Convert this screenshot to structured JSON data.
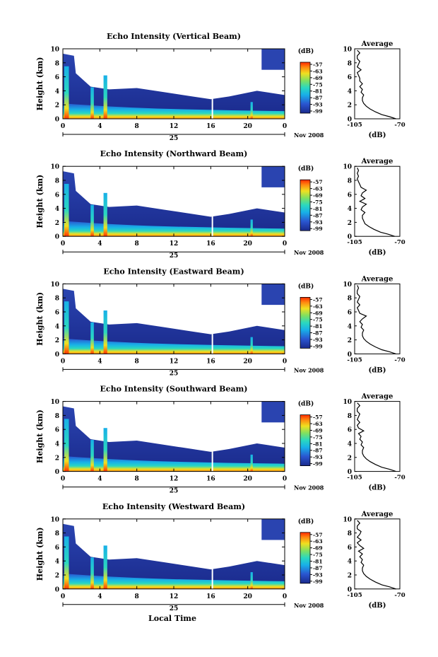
{
  "figure": {
    "xlabel": "Local Time",
    "date_label": "Nov 2008",
    "day_label": "25",
    "colorbar_unit": "(dB)"
  },
  "chart_data": [
    {
      "type": "heatmap",
      "title": "Echo Intensity (Vertical Beam)",
      "ylabel": "Height (km)",
      "x_ticks": [
        "0",
        "4",
        "8",
        "12",
        "16",
        "20",
        "0"
      ],
      "xlim": [
        0,
        24
      ],
      "y_ticks": [
        "0",
        "2",
        "4",
        "6",
        "8",
        "10"
      ],
      "ylim": [
        0,
        10
      ],
      "colorbar_ticks": [
        "-57",
        "-63",
        "-69",
        "-75",
        "-81",
        "-87",
        "-93",
        "-99"
      ],
      "profile": {
        "title": "Average",
        "xlabel": "(dB)",
        "x_ticks": [
          "-105",
          "-70"
        ],
        "xlim": [
          -105,
          -70
        ],
        "y_ticks": [
          "0",
          "2",
          "4",
          "6",
          "8",
          "10"
        ],
        "ylim": [
          0,
          10
        ],
        "heights": [
          0,
          0.3,
          0.6,
          1.0,
          1.4,
          1.8,
          2.2,
          2.6,
          3.0,
          3.4,
          3.8,
          4.2,
          4.6,
          5.0,
          5.4,
          5.8,
          6.2,
          6.6,
          7.0,
          7.4,
          7.8,
          8.2,
          8.6,
          9.0,
          9.4,
          9.8
        ],
        "values": [
          -73,
          -78,
          -84,
          -89,
          -93,
          -96,
          -98,
          -99,
          -99,
          -98,
          -100,
          -99,
          -101,
          -99,
          -101,
          -101,
          -102,
          -103,
          -100,
          -103,
          -102,
          -101,
          -103,
          -103,
          -101,
          -103
        ]
      },
      "colors": {
        "low": "#1a2a8c",
        "high": "#ff3300"
      }
    },
    {
      "type": "heatmap",
      "title": "Echo Intensity (Northward Beam)",
      "ylabel": "Height (km)",
      "x_ticks": [
        "0",
        "4",
        "8",
        "12",
        "16",
        "20",
        "0"
      ],
      "xlim": [
        0,
        24
      ],
      "y_ticks": [
        "0",
        "2",
        "4",
        "6",
        "8",
        "10"
      ],
      "ylim": [
        0,
        10
      ],
      "colorbar_ticks": [
        "-57",
        "-63",
        "-69",
        "-75",
        "-81",
        "-87",
        "-93",
        "-99"
      ],
      "profile": {
        "title": "Average",
        "xlabel": "(dB)",
        "x_ticks": [
          "-105",
          "-70"
        ],
        "xlim": [
          -105,
          -70
        ],
        "heights": [
          0,
          0.3,
          0.6,
          1.0,
          1.4,
          1.8,
          2.2,
          2.6,
          3.0,
          3.4,
          3.8,
          4.2,
          4.6,
          5.0,
          5.4,
          5.8,
          6.2,
          6.6,
          7.0,
          7.4,
          7.8,
          8.2,
          8.6,
          9.0,
          9.4,
          9.8
        ],
        "values": [
          -74,
          -79,
          -85,
          -90,
          -94,
          -97,
          -98,
          -99,
          -99,
          -97,
          -100,
          -99,
          -96,
          -101,
          -97,
          -100,
          -99,
          -96,
          -100,
          -101,
          -102,
          -103,
          -102,
          -103,
          -102,
          -103
        ]
      },
      "colors": {
        "low": "#1a2a8c",
        "high": "#ff3300"
      }
    },
    {
      "type": "heatmap",
      "title": "Echo Intensity (Eastward Beam)",
      "ylabel": "Height (km)",
      "x_ticks": [
        "0",
        "4",
        "8",
        "12",
        "16",
        "20",
        "0"
      ],
      "xlim": [
        0,
        24
      ],
      "y_ticks": [
        "0",
        "2",
        "4",
        "6",
        "8",
        "10"
      ],
      "ylim": [
        0,
        10
      ],
      "colorbar_ticks": [
        "-57",
        "-63",
        "-69",
        "-75",
        "-81",
        "-87",
        "-93",
        "-99"
      ],
      "profile": {
        "title": "Average",
        "xlabel": "(dB)",
        "x_ticks": [
          "-105",
          "-70"
        ],
        "xlim": [
          -105,
          -70
        ],
        "heights": [
          0,
          0.3,
          0.6,
          1.0,
          1.4,
          1.8,
          2.2,
          2.6,
          3.0,
          3.4,
          3.8,
          4.2,
          4.6,
          5.0,
          5.4,
          5.8,
          6.2,
          6.6,
          7.0,
          7.4,
          7.8,
          8.2,
          8.6,
          9.0,
          9.4,
          9.8
        ],
        "values": [
          -73,
          -78,
          -84,
          -89,
          -93,
          -96,
          -98,
          -99,
          -99,
          -98,
          -100,
          -99,
          -101,
          -99,
          -96,
          -101,
          -102,
          -103,
          -101,
          -103,
          -102,
          -101,
          -103,
          -103,
          -102,
          -103
        ]
      },
      "colors": {
        "low": "#1a2a8c",
        "high": "#ff3300"
      }
    },
    {
      "type": "heatmap",
      "title": "Echo Intensity (Southward Beam)",
      "ylabel": "Height (km)",
      "x_ticks": [
        "0",
        "4",
        "8",
        "12",
        "16",
        "20",
        "0"
      ],
      "xlim": [
        0,
        24
      ],
      "y_ticks": [
        "0",
        "2",
        "4",
        "6",
        "8",
        "10"
      ],
      "ylim": [
        0,
        10
      ],
      "colorbar_ticks": [
        "-57",
        "-63",
        "-69",
        "-75",
        "-81",
        "-87",
        "-93",
        "-99"
      ],
      "profile": {
        "title": "Average",
        "xlabel": "(dB)",
        "x_ticks": [
          "-105",
          "-70"
        ],
        "xlim": [
          -105,
          -70
        ],
        "heights": [
          0,
          0.3,
          0.6,
          1.0,
          1.4,
          1.8,
          2.2,
          2.6,
          3.0,
          3.4,
          3.8,
          4.2,
          4.6,
          5.0,
          5.4,
          5.8,
          6.2,
          6.6,
          7.0,
          7.4,
          7.8,
          8.2,
          8.6,
          9.0,
          9.4,
          9.8
        ],
        "values": [
          -73,
          -78,
          -84,
          -89,
          -93,
          -96,
          -98,
          -99,
          -99,
          -98,
          -100,
          -99,
          -101,
          -100,
          -102,
          -98,
          -102,
          -103,
          -101,
          -103,
          -102,
          -101,
          -103,
          -103,
          -101,
          -103
        ]
      },
      "colors": {
        "low": "#1a2a8c",
        "high": "#ff3300"
      }
    },
    {
      "type": "heatmap",
      "title": "Echo Intensity (Westward Beam)",
      "ylabel": "Height (km)",
      "x_ticks": [
        "0",
        "4",
        "8",
        "12",
        "16",
        "20",
        "0"
      ],
      "xlim": [
        0,
        24
      ],
      "y_ticks": [
        "0",
        "2",
        "4",
        "6",
        "8",
        "10"
      ],
      "ylim": [
        0,
        10
      ],
      "colorbar_ticks": [
        "-57",
        "-63",
        "-69",
        "-75",
        "-81",
        "-87",
        "-93",
        "-99"
      ],
      "profile": {
        "title": "Average",
        "xlabel": "(dB)",
        "x_ticks": [
          "-105",
          "-70"
        ],
        "xlim": [
          -105,
          -70
        ],
        "heights": [
          0,
          0.3,
          0.6,
          1.0,
          1.4,
          1.8,
          2.2,
          2.6,
          3.0,
          3.4,
          3.8,
          4.2,
          4.6,
          5.0,
          5.4,
          5.8,
          6.2,
          6.6,
          7.0,
          7.4,
          7.8,
          8.2,
          8.6,
          9.0,
          9.4,
          9.8
        ],
        "values": [
          -73,
          -78,
          -84,
          -89,
          -93,
          -96,
          -98,
          -99,
          -99,
          -98,
          -100,
          -99,
          -101,
          -99,
          -102,
          -98,
          -101,
          -103,
          -100,
          -103,
          -101,
          -100,
          -103,
          -103,
          -101,
          -103
        ]
      },
      "colors": {
        "low": "#1a2a8c",
        "high": "#ff3300"
      }
    }
  ]
}
